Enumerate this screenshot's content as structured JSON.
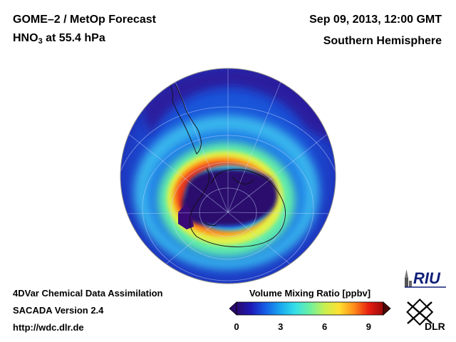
{
  "header": {
    "title": "GOME–2 / MetOp Forecast",
    "subtitle_species": "HNO",
    "subtitle_sub": "3",
    "subtitle_rest": " at 55.4 hPa",
    "datetime": "Sep 09, 2013, 12:00 GMT",
    "region": "Southern Hemisphere"
  },
  "footer": {
    "line1": "4DVar Chemical Data Assimilation",
    "line2": "SACADA Version 2.4",
    "line3": "http://wdc.dlr.de"
  },
  "colorbar": {
    "title": "Volume Mixing Ratio [ppbv]",
    "ticks": [
      "0",
      "3",
      "6",
      "9"
    ],
    "min": 0,
    "max": 10,
    "colors": [
      "#2a0a6e",
      "#1c1ab8",
      "#1560e6",
      "#1aa8f0",
      "#35e0e8",
      "#6cf0a0",
      "#c8f050",
      "#ffe030",
      "#ff8c1a",
      "#e81e10",
      "#9a0a0a"
    ]
  },
  "logos": {
    "riu": "RIU",
    "dlr": "DLR"
  }
}
